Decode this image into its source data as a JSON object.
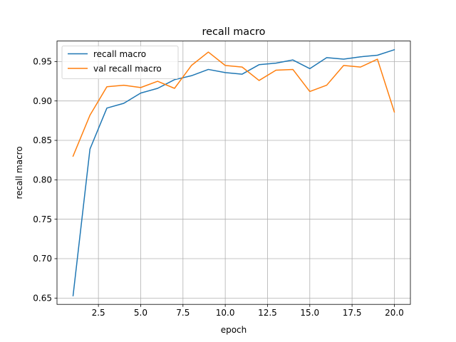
{
  "chart_data": {
    "type": "line",
    "title": "recall macro",
    "xlabel": "epoch",
    "ylabel": "recall macro",
    "xlim": [
      0.05,
      20.95
    ],
    "ylim": [
      0.642,
      0.976
    ],
    "grid": true,
    "legend_position": "top-left",
    "x": [
      1,
      2,
      3,
      4,
      5,
      6,
      7,
      8,
      9,
      10,
      11,
      12,
      13,
      14,
      15,
      16,
      17,
      18,
      19,
      20
    ],
    "xticks": [
      {
        "value": 2.5,
        "label": "2.5"
      },
      {
        "value": 5.0,
        "label": "5.0"
      },
      {
        "value": 7.5,
        "label": "7.5"
      },
      {
        "value": 10.0,
        "label": "10.0"
      },
      {
        "value": 12.5,
        "label": "12.5"
      },
      {
        "value": 15.0,
        "label": "15.0"
      },
      {
        "value": 17.5,
        "label": "17.5"
      },
      {
        "value": 20.0,
        "label": "20.0"
      }
    ],
    "yticks": [
      {
        "value": 0.65,
        "label": "0.65"
      },
      {
        "value": 0.7,
        "label": "0.70"
      },
      {
        "value": 0.75,
        "label": "0.75"
      },
      {
        "value": 0.8,
        "label": "0.80"
      },
      {
        "value": 0.85,
        "label": "0.85"
      },
      {
        "value": 0.9,
        "label": "0.90"
      },
      {
        "value": 0.95,
        "label": "0.95"
      }
    ],
    "series": [
      {
        "name": "recall macro",
        "color": "#1f77b4",
        "values": [
          0.653,
          0.839,
          0.891,
          0.897,
          0.91,
          0.916,
          0.927,
          0.932,
          0.94,
          0.936,
          0.934,
          0.946,
          0.948,
          0.952,
          0.941,
          0.955,
          0.953,
          0.956,
          0.958,
          0.965
        ]
      },
      {
        "name": "val recall macro",
        "color": "#ff7f0e",
        "values": [
          0.83,
          0.882,
          0.918,
          0.92,
          0.917,
          0.925,
          0.916,
          0.945,
          0.962,
          0.945,
          0.943,
          0.926,
          0.939,
          0.94,
          0.912,
          0.92,
          0.945,
          0.943,
          0.953,
          0.886
        ]
      }
    ]
  }
}
